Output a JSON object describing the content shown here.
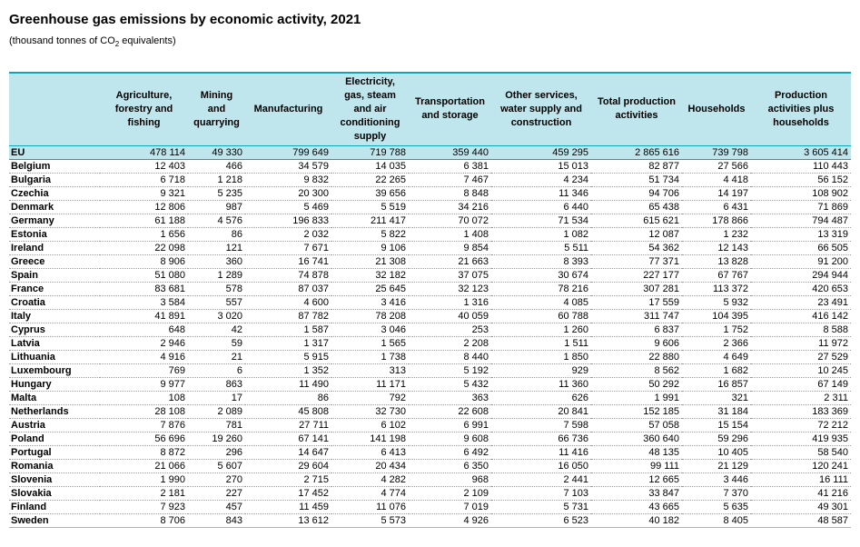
{
  "title": "Greenhouse gas emissions by economic activity, 2021",
  "subtitle": {
    "prefix": "(thousand tonnes of CO",
    "sub": "2",
    "suffix": " equivalents)"
  },
  "table": {
    "headers": [
      "",
      "Agriculture, forestry and fishing",
      "Mining and quarrying",
      "Manufacturing",
      "Electricity, gas, steam and air conditioning supply",
      "Transportation and storage",
      "Other services, water supply and construction",
      "Total production activities",
      "Households",
      "Production activities plus households"
    ],
    "rows": [
      [
        "EU",
        "478 114",
        "49 330",
        "799 649",
        "719 788",
        "359 440",
        "459 295",
        "2 865 616",
        "739 798",
        "3 605 414"
      ],
      [
        "Belgium",
        "12 403",
        "466",
        "34 579",
        "14 035",
        "6 381",
        "15 013",
        "82 877",
        "27 566",
        "110 443"
      ],
      [
        "Bulgaria",
        "6 718",
        "1 218",
        "9 832",
        "22 265",
        "7 467",
        "4 234",
        "51 734",
        "4 418",
        "56 152"
      ],
      [
        "Czechia",
        "9 321",
        "5 235",
        "20 300",
        "39 656",
        "8 848",
        "11 346",
        "94 706",
        "14 197",
        "108 902"
      ],
      [
        "Denmark",
        "12 806",
        "987",
        "5 469",
        "5 519",
        "34 216",
        "6 440",
        "65 438",
        "6 431",
        "71 869"
      ],
      [
        "Germany",
        "61 188",
        "4 576",
        "196 833",
        "211 417",
        "70 072",
        "71 534",
        "615 621",
        "178 866",
        "794 487"
      ],
      [
        "Estonia",
        "1 656",
        "86",
        "2 032",
        "5 822",
        "1 408",
        "1 082",
        "12 087",
        "1 232",
        "13 319"
      ],
      [
        "Ireland",
        "22 098",
        "121",
        "7 671",
        "9 106",
        "9 854",
        "5 511",
        "54 362",
        "12 143",
        "66 505"
      ],
      [
        "Greece",
        "8 906",
        "360",
        "16 741",
        "21 308",
        "21 663",
        "8 393",
        "77 371",
        "13 828",
        "91 200"
      ],
      [
        "Spain",
        "51 080",
        "1 289",
        "74 878",
        "32 182",
        "37 075",
        "30 674",
        "227 177",
        "67 767",
        "294 944"
      ],
      [
        "France",
        "83 681",
        "578",
        "87 037",
        "25 645",
        "32 123",
        "78 216",
        "307 281",
        "113 372",
        "420 653"
      ],
      [
        "Croatia",
        "3 584",
        "557",
        "4 600",
        "3 416",
        "1 316",
        "4 085",
        "17 559",
        "5 932",
        "23 491"
      ],
      [
        "Italy",
        "41 891",
        "3 020",
        "87 782",
        "78 208",
        "40 059",
        "60 788",
        "311 747",
        "104 395",
        "416 142"
      ],
      [
        "Cyprus",
        "648",
        "42",
        "1 587",
        "3 046",
        "253",
        "1 260",
        "6 837",
        "1 752",
        "8 588"
      ],
      [
        "Latvia",
        "2 946",
        "59",
        "1 317",
        "1 565",
        "2 208",
        "1 511",
        "9 606",
        "2 366",
        "11 972"
      ],
      [
        "Lithuania",
        "4 916",
        "21",
        "5 915",
        "1 738",
        "8 440",
        "1 850",
        "22 880",
        "4 649",
        "27 529"
      ],
      [
        "Luxembourg",
        "769",
        "6",
        "1 352",
        "313",
        "5 192",
        "929",
        "8 562",
        "1 682",
        "10 245"
      ],
      [
        "Hungary",
        "9 977",
        "863",
        "11 490",
        "11 171",
        "5 432",
        "11 360",
        "50 292",
        "16 857",
        "67 149"
      ],
      [
        "Malta",
        "108",
        "17",
        "86",
        "792",
        "363",
        "626",
        "1 991",
        "321",
        "2 311"
      ],
      [
        "Netherlands",
        "28 108",
        "2 089",
        "45 808",
        "32 730",
        "22 608",
        "20 841",
        "152 185",
        "31 184",
        "183 369"
      ],
      [
        "Austria",
        "7 876",
        "781",
        "27 711",
        "6 102",
        "6 991",
        "7 598",
        "57 058",
        "15 154",
        "72 212"
      ],
      [
        "Poland",
        "56 696",
        "19 260",
        "67 141",
        "141 198",
        "9 608",
        "66 736",
        "360 640",
        "59 296",
        "419 935"
      ],
      [
        "Portugal",
        "8 872",
        "296",
        "14 647",
        "6 413",
        "6 492",
        "11 416",
        "48 135",
        "10 405",
        "58 540"
      ],
      [
        "Romania",
        "21 066",
        "5 607",
        "29 604",
        "20 434",
        "6 350",
        "16 050",
        "99 111",
        "21 129",
        "120 241"
      ],
      [
        "Slovenia",
        "1 990",
        "270",
        "2 715",
        "4 282",
        "968",
        "2 441",
        "12 665",
        "3 446",
        "16 111"
      ],
      [
        "Slovakia",
        "2 181",
        "227",
        "17 452",
        "4 774",
        "2 109",
        "7 103",
        "33 847",
        "7 370",
        "41 216"
      ],
      [
        "Finland",
        "7 923",
        "457",
        "11 459",
        "11 076",
        "7 019",
        "5 731",
        "43 665",
        "5 635",
        "49 301"
      ],
      [
        "Sweden",
        "8 706",
        "843",
        "13 612",
        "5 573",
        "4 926",
        "6 523",
        "40 182",
        "8 405",
        "48 587"
      ]
    ]
  }
}
